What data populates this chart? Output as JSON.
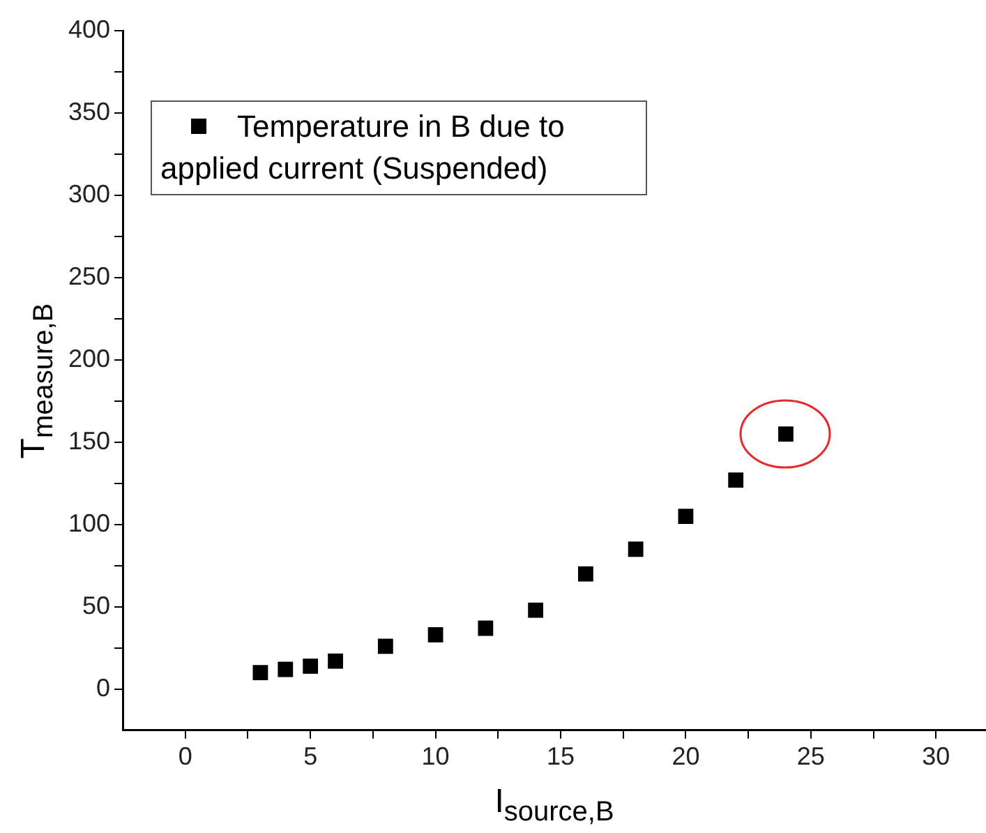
{
  "chart_data": {
    "type": "scatter",
    "xlabel": "I$_{source,B}$",
    "ylabel": "T$_{measure,B}$",
    "x": [
      3,
      4,
      5,
      6,
      8,
      10,
      12,
      14,
      16,
      18,
      20,
      22,
      24
    ],
    "series": [
      {
        "name": "Temperature in B due to applied current (Suspended)",
        "color": "#000000",
        "values": [
          10,
          12,
          14,
          17,
          26,
          33,
          37,
          48,
          70,
          85,
          105,
          127,
          155
        ]
      }
    ],
    "xlim": [
      -2.5,
      32
    ],
    "xticks": [
      0,
      {
        "value": 2.5,
        "label": null
      },
      5,
      {
        "value": 7.5,
        "label": null
      },
      10,
      {
        "value": 12.5,
        "label": null
      },
      15,
      {
        "value": 17.5,
        "label": null
      },
      20,
      {
        "value": 22.5,
        "label": null
      },
      25,
      {
        "value": 27.5,
        "label": null
      },
      30
    ],
    "ylim": [
      -25,
      400
    ],
    "yticks": [
      0,
      {
        "value": 25,
        "label": null
      },
      50,
      {
        "value": 75,
        "label": null
      },
      100,
      {
        "value": 125,
        "label": null
      },
      150,
      {
        "value": 175,
        "label": null
      },
      200,
      {
        "value": 225,
        "label": null
      },
      250,
      {
        "value": 275,
        "label": null
      },
      300,
      {
        "value": 325,
        "label": null
      },
      350,
      {
        "value": 375,
        "label": null
      },
      400
    ],
    "marker": "square",
    "grid": false,
    "legend": "top left"
  }
}
